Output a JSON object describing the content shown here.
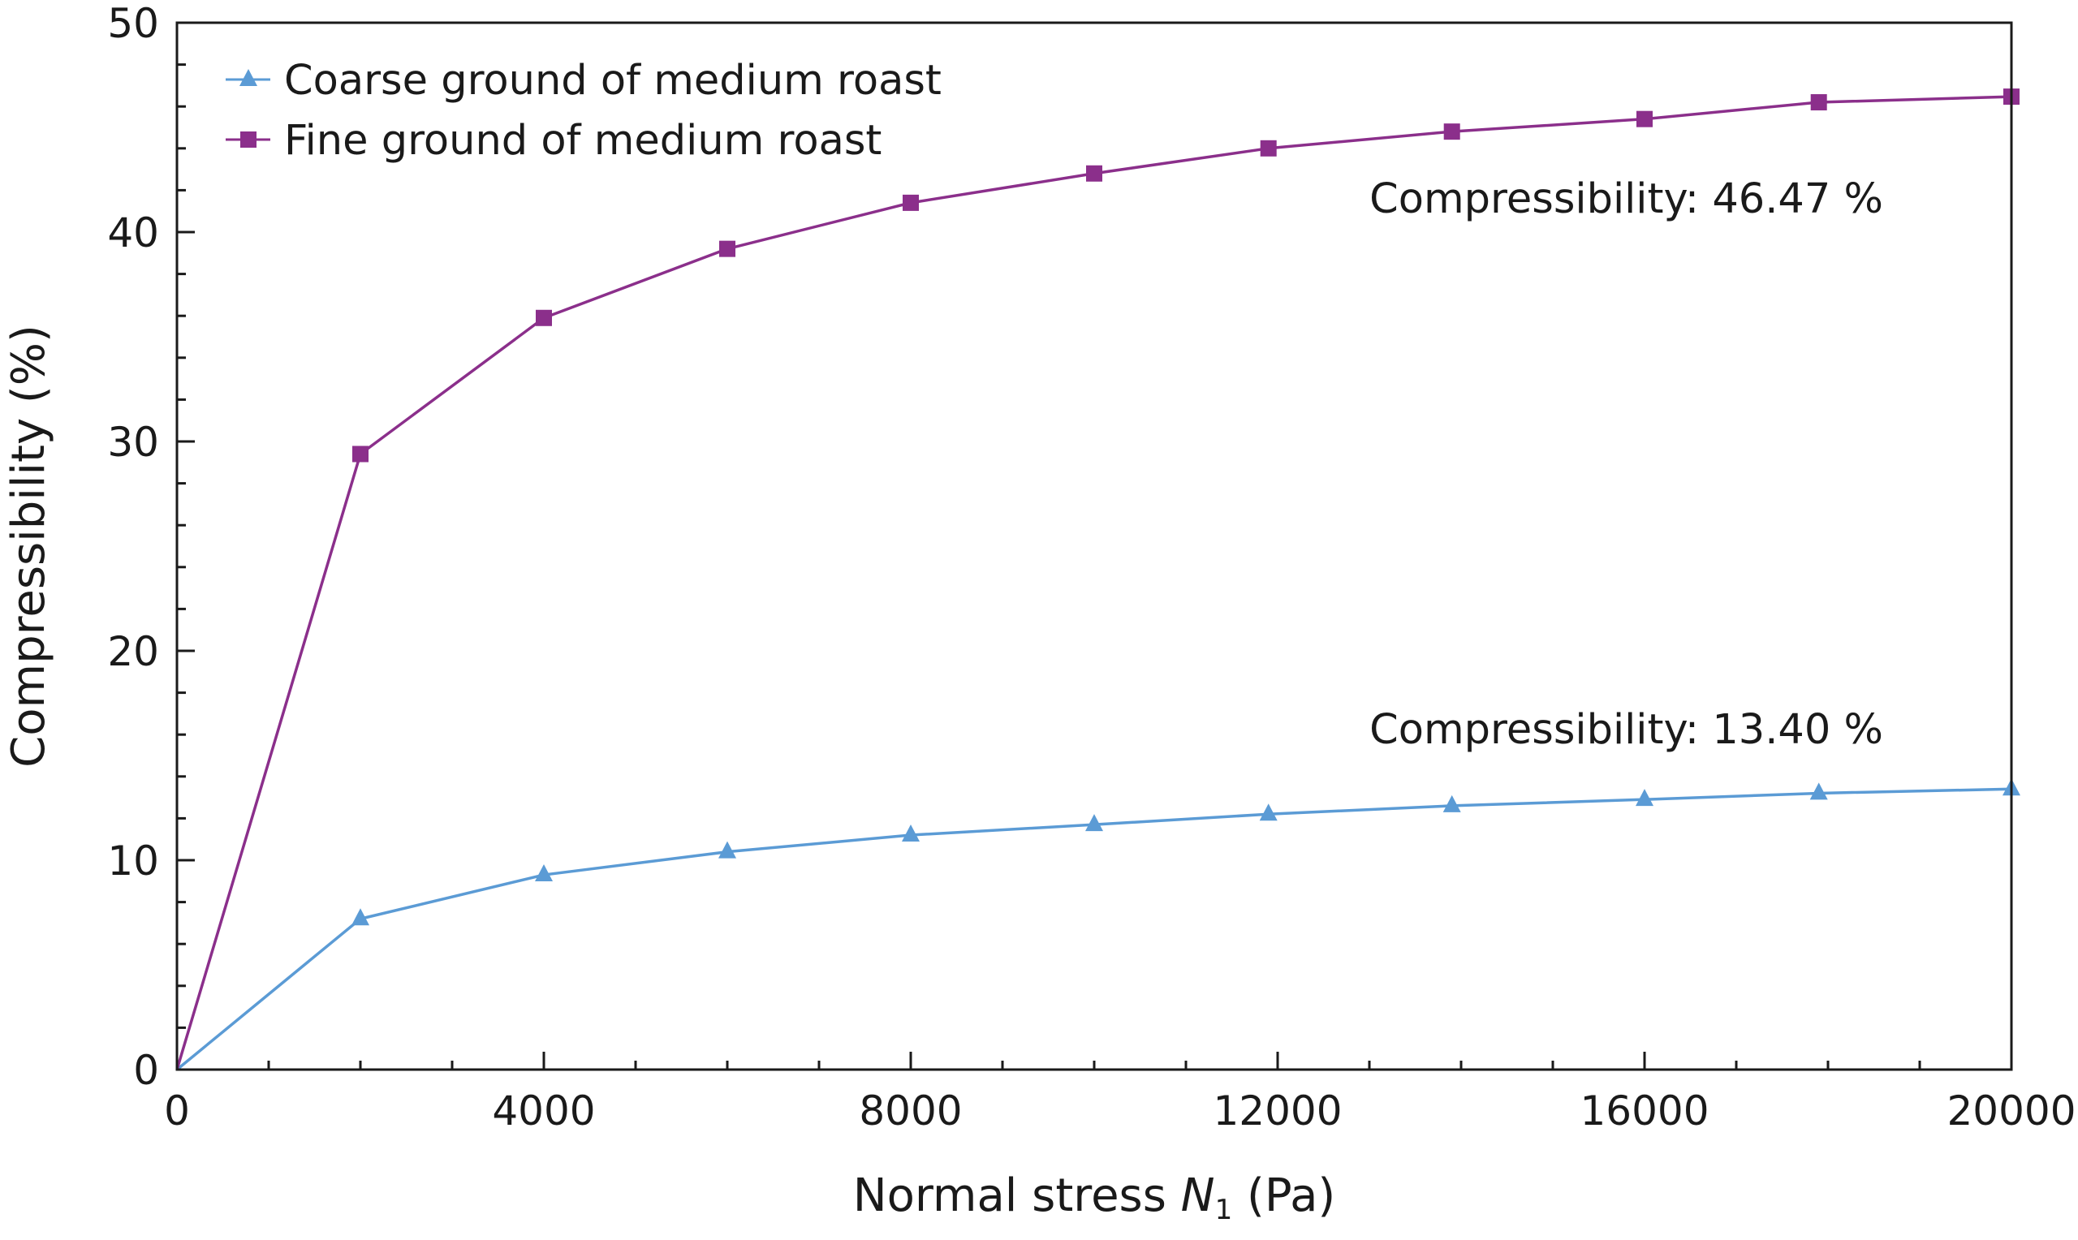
{
  "chart_data": {
    "type": "line",
    "title": "",
    "xlabel": {
      "prefix": "Normal stress ",
      "symbol": "N",
      "subscript": "1",
      "suffix": " (Pa)"
    },
    "ylabel": "Compressibility (%)",
    "xlim": [
      0,
      20000
    ],
    "ylim": [
      0,
      50
    ],
    "x_ticks": [
      0,
      4000,
      8000,
      12000,
      16000,
      20000
    ],
    "x_tick_labels": [
      "0",
      "4000",
      "8000",
      "12000",
      "16000",
      "20000"
    ],
    "x_minor_step": 1000,
    "y_ticks": [
      0,
      10,
      20,
      30,
      40,
      50
    ],
    "y_tick_labels": [
      "0",
      "10",
      "20",
      "30",
      "40",
      "50"
    ],
    "y_minor_step": 2,
    "grid": false,
    "legend_position": "top-left",
    "series": [
      {
        "name": "Coarse ground of medium roast",
        "color": "#5b9bd5",
        "marker": "triangle",
        "x": [
          0,
          2000,
          4000,
          6000,
          8000,
          10000,
          11900,
          13900,
          16000,
          17900,
          20000
        ],
        "y": [
          0,
          7.2,
          9.3,
          10.4,
          11.2,
          11.7,
          12.2,
          12.6,
          12.9,
          13.2,
          13.4
        ]
      },
      {
        "name": "Fine ground of medium roast",
        "color": "#8b2f8b",
        "marker": "square",
        "x": [
          0,
          2000,
          4000,
          6000,
          8000,
          10000,
          11900,
          13900,
          16000,
          17900,
          20000
        ],
        "y": [
          0,
          29.4,
          35.9,
          39.2,
          41.4,
          42.8,
          44.0,
          44.8,
          45.4,
          46.2,
          46.47
        ]
      }
    ],
    "annotations": [
      {
        "text": "Compressibility: 46.47 %",
        "series": "Fine ground of medium roast"
      },
      {
        "text": "Compressibility: 13.40 %",
        "series": "Coarse ground of medium roast"
      }
    ]
  }
}
